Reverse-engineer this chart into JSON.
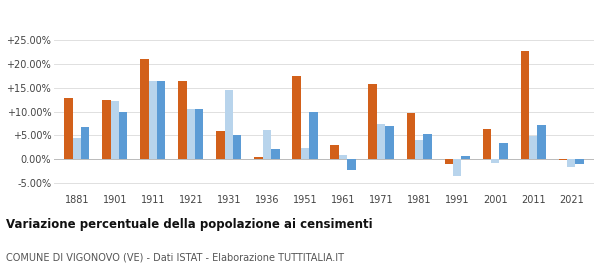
{
  "years": [
    1881,
    1901,
    1911,
    1921,
    1931,
    1936,
    1951,
    1961,
    1971,
    1981,
    1991,
    2001,
    2011,
    2021
  ],
  "vigonovo": [
    12.8,
    12.5,
    21.0,
    16.3,
    6.0,
    0.5,
    17.5,
    3.1,
    15.8,
    9.7,
    -1.0,
    6.3,
    22.7,
    -0.2
  ],
  "provincia_ve": [
    4.5,
    12.2,
    16.5,
    10.5,
    14.5,
    6.2,
    2.3,
    1.0,
    7.5,
    4.0,
    -3.5,
    -0.8,
    4.8,
    -1.5
  ],
  "veneto": [
    6.8,
    10.0,
    16.5,
    10.5,
    5.0,
    2.2,
    10.0,
    -2.2,
    7.0,
    5.3,
    0.8,
    3.5,
    7.2,
    -1.0
  ],
  "color_vigonovo": "#d2601a",
  "color_provincia": "#b8d4ec",
  "color_veneto": "#5b9bd5",
  "title": "Variazione percentuale della popolazione ai censimenti",
  "subtitle": "COMUNE DI VIGONOVO (VE) - Dati ISTAT - Elaborazione TUTTITALIA.IT",
  "ylim": [
    -6.5,
    27.5
  ],
  "yticks": [
    -5.0,
    0.0,
    5.0,
    10.0,
    15.0,
    20.0,
    25.0
  ],
  "ytick_labels": [
    "-5.00%",
    "0.00%",
    "+5.00%",
    "+10.00%",
    "+15.00%",
    "+20.00%",
    "+25.00%"
  ],
  "bar_width": 0.22,
  "background_color": "#ffffff",
  "grid_color": "#e0e0e0"
}
